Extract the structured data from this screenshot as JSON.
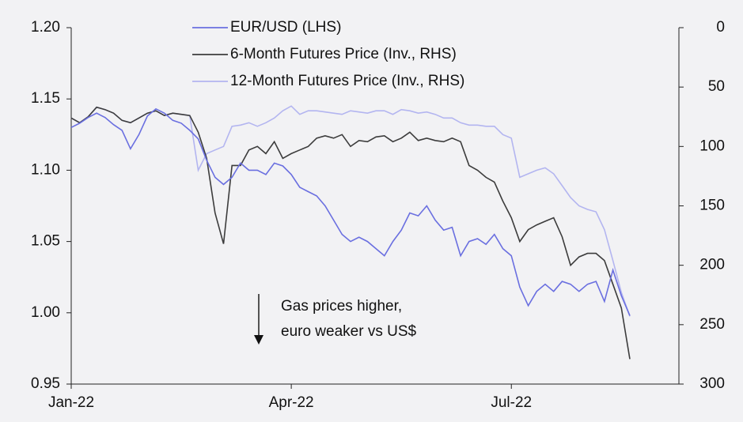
{
  "chart_data": {
    "type": "line",
    "categories": [
      "Jan-22",
      null,
      null,
      null,
      null,
      null,
      null,
      null,
      null,
      null,
      null,
      null,
      null,
      null,
      null,
      null,
      null,
      null,
      null,
      null,
      null,
      null,
      null,
      null,
      null,
      null,
      "Apr-22",
      null,
      null,
      null,
      null,
      null,
      null,
      null,
      null,
      null,
      null,
      null,
      null,
      null,
      null,
      null,
      null,
      null,
      null,
      null,
      null,
      null,
      null,
      null,
      null,
      null,
      "Jul-22",
      null,
      null,
      null,
      null,
      null,
      null,
      null,
      null,
      null,
      null,
      null,
      null,
      null,
      null
    ],
    "series": [
      {
        "name": "EUR/USD (LHS)",
        "color": "#6a6fe0",
        "axis": "y",
        "values": [
          1.13,
          1.133,
          1.137,
          1.14,
          1.137,
          1.132,
          1.128,
          1.115,
          1.125,
          1.138,
          1.143,
          1.14,
          1.135,
          1.133,
          1.128,
          1.122,
          1.107,
          1.095,
          1.09,
          1.095,
          1.105,
          1.1,
          1.1,
          1.097,
          1.105,
          1.103,
          1.097,
          1.088,
          1.085,
          1.082,
          1.075,
          1.065,
          1.055,
          1.05,
          1.053,
          1.05,
          1.045,
          1.04,
          1.05,
          1.058,
          1.07,
          1.068,
          1.075,
          1.065,
          1.058,
          1.06,
          1.04,
          1.05,
          1.052,
          1.048,
          1.055,
          1.045,
          1.04,
          1.018,
          1.005,
          1.015,
          1.02,
          1.015,
          1.022,
          1.02,
          1.015,
          1.02,
          1.022,
          1.008,
          1.03,
          1.012,
          0.998
        ]
      },
      {
        "name": "6-Month Futures Price (Inv., RHS)",
        "color": "#3c3c3c",
        "axis": "y2",
        "values": [
          76,
          80,
          75,
          67,
          69,
          72,
          78,
          80,
          76,
          72,
          70,
          74,
          72,
          73,
          74,
          88,
          110,
          156,
          182,
          116,
          116,
          103,
          100,
          106,
          96,
          110,
          106,
          103,
          100,
          93,
          91,
          93,
          90,
          100,
          95,
          96,
          92,
          91,
          96,
          93,
          88,
          95,
          93,
          95,
          96,
          93,
          96,
          116,
          120,
          126,
          130,
          146,
          160,
          180,
          170,
          166,
          163,
          160,
          176,
          200,
          193,
          190,
          190,
          196,
          216,
          236,
          279
        ]
      },
      {
        "name": "12-Month Futures Price (Inv., RHS)",
        "color": "#b3b5f0",
        "axis": "y2",
        "values": [
          76,
          80,
          75,
          67,
          69,
          72,
          78,
          80,
          76,
          72,
          70,
          74,
          72,
          73,
          74,
          120,
          106,
          103,
          100,
          83,
          82,
          80,
          83,
          80,
          76,
          70,
          66,
          73,
          70,
          70,
          71,
          72,
          73,
          70,
          71,
          72,
          70,
          70,
          73,
          69,
          70,
          72,
          71,
          73,
          76,
          76,
          80,
          82,
          82,
          83,
          83,
          90,
          93,
          126,
          123,
          120,
          118,
          123,
          133,
          143,
          150,
          153,
          155,
          170,
          196,
          223,
          243
        ]
      }
    ],
    "ylim": [
      0.95,
      1.2
    ],
    "yticks": [
      0.95,
      {
        "value": 1.0,
        "label": "1.00"
      },
      1.05,
      {
        "value": 1.1,
        "label": "1.10"
      },
      1.15,
      {
        "value": 1.2,
        "label": "1.20"
      }
    ],
    "y2lim": [
      300,
      0
    ],
    "y2ticks": [
      0,
      50,
      100,
      150,
      200,
      250,
      300
    ],
    "legend": "top",
    "annotation": [
      "Gas prices higher,",
      "euro weaker vs US$"
    ]
  }
}
